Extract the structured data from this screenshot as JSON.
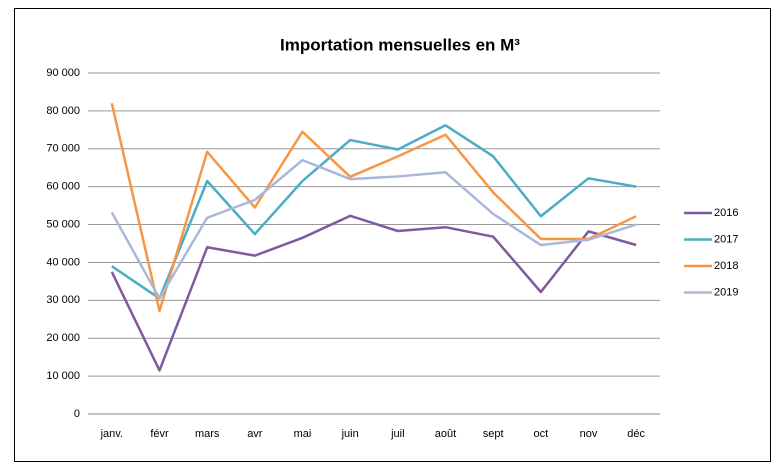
{
  "chart_data": {
    "type": "line",
    "title": "Importation mensuelles en M³",
    "categories": [
      "janv.",
      "févr",
      "mars",
      "avr",
      "mai",
      "juin",
      "juil",
      "août",
      "sept",
      "oct",
      "nov",
      "déc"
    ],
    "series": [
      {
        "name": "2016",
        "color": "#7f5a9f",
        "values": [
          37500,
          11500,
          44000,
          41800,
          46500,
          52300,
          48300,
          49300,
          46800,
          32200,
          48200,
          44600
        ]
      },
      {
        "name": "2017",
        "color": "#4bacc6",
        "values": [
          39000,
          30500,
          61500,
          47500,
          61500,
          72300,
          69800,
          76200,
          68000,
          52200,
          62200,
          60000
        ]
      },
      {
        "name": "2018",
        "color": "#f79646",
        "values": [
          82000,
          27200,
          69200,
          54500,
          74500,
          62600,
          68000,
          73700,
          58500,
          46200,
          46200,
          52200
        ]
      },
      {
        "name": "2019",
        "color": "#a9b8da",
        "values": [
          53200,
          30500,
          51800,
          56500,
          67000,
          62000,
          62700,
          63800,
          52800,
          44600,
          46000,
          50000
        ]
      }
    ],
    "ylim": [
      0,
      90000
    ],
    "yticks": [
      0,
      {
        "value": 10000,
        "label": "10 000"
      },
      {
        "value": 20000,
        "label": "20 000"
      },
      {
        "value": 30000,
        "label": "30 000"
      },
      {
        "value": 40000,
        "label": "40 000"
      },
      {
        "value": 50000,
        "label": "50 000"
      },
      {
        "value": 60000,
        "label": "60 000"
      },
      {
        "value": 70000,
        "label": "70 000"
      },
      {
        "value": 80000,
        "label": "80 000"
      },
      {
        "value": 90000,
        "label": "90 000"
      }
    ],
    "grid": true,
    "legend": "right"
  }
}
